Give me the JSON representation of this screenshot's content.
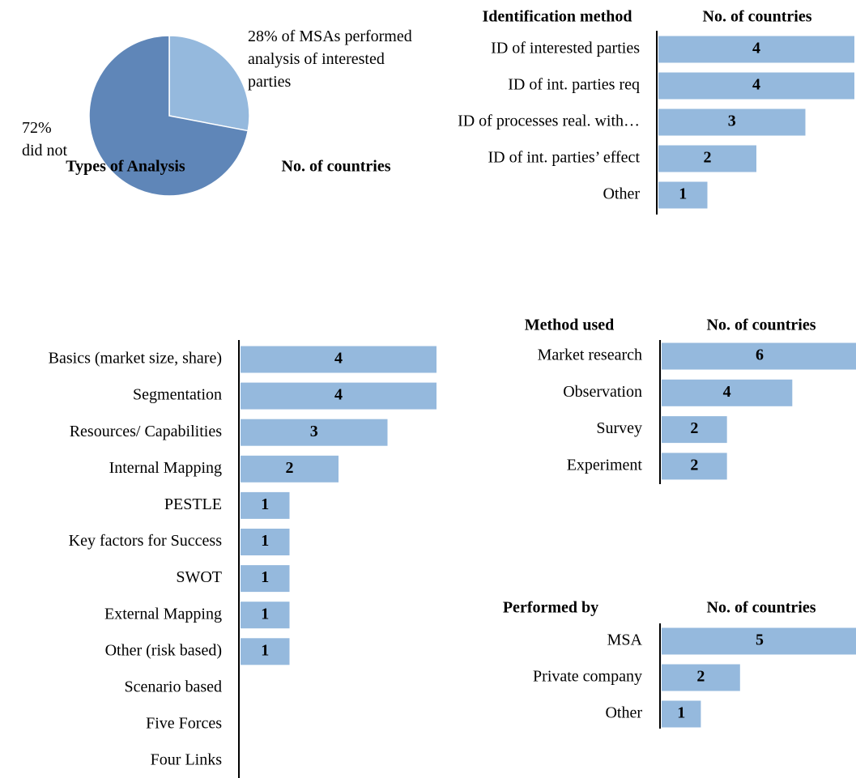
{
  "chart_data": [
    {
      "type": "pie",
      "values": [
        28,
        72
      ],
      "value_labels": [
        "28% of MSAs performed analysis of interested parties",
        "72% did not"
      ],
      "colors": [
        "#95b9dd",
        "#5f86b8"
      ]
    },
    {
      "type": "bar",
      "y_label": "Identification method",
      "x_label": "No. of countries",
      "categories": [
        "ID of interested parties",
        "ID of int. parties req",
        "ID of processes real. with…",
        "ID of int. parties’ effect",
        "Other"
      ],
      "values": [
        4,
        4,
        3,
        2,
        1
      ],
      "color": "#95b9dd"
    },
    {
      "type": "bar",
      "y_label": "Types of Analysis",
      "x_label": "No. of countries",
      "categories": [
        "Basics (market size, share)",
        "Segmentation",
        "Resources/ Capabilities",
        "Internal Mapping",
        "PESTLE",
        "Key factors for Success",
        "SWOT",
        "External Mapping",
        "Other (risk based)",
        "Scenario based",
        "Five Forces",
        "Four Links"
      ],
      "values": [
        4,
        4,
        3,
        2,
        1,
        1,
        1,
        1,
        1,
        0,
        0,
        0
      ],
      "color": "#95b9dd"
    },
    {
      "type": "bar",
      "y_label": "Method used",
      "x_label": "No. of countries",
      "categories": [
        "Market research",
        "Observation",
        "Survey",
        "Experiment"
      ],
      "values": [
        6,
        4,
        2,
        2
      ],
      "color": "#95b9dd"
    },
    {
      "type": "bar",
      "y_label": "Performed by",
      "x_label": "No. of countries",
      "categories": [
        "MSA",
        "Private company",
        "Other"
      ],
      "values": [
        5,
        2,
        1
      ],
      "color": "#95b9dd"
    }
  ]
}
